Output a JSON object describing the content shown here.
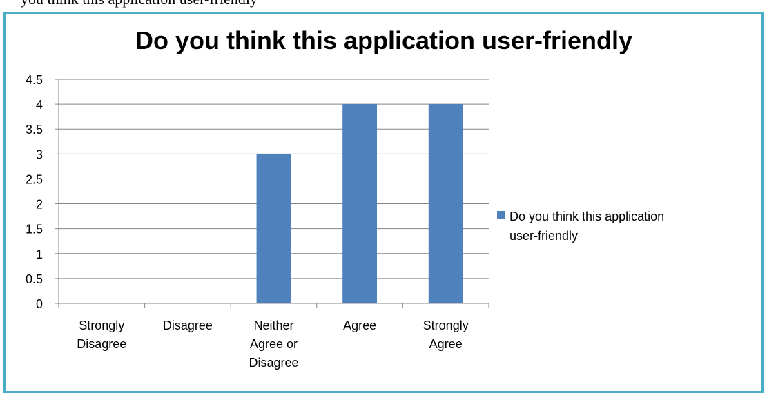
{
  "page_text": "you think this application user-friendly",
  "chart_data": {
    "type": "bar",
    "title": "Do you think this application user-friendly",
    "categories": [
      [
        "Strongly",
        "Disagree"
      ],
      [
        "Disagree"
      ],
      [
        "Neither",
        "Agree or",
        "Disagree"
      ],
      [
        "Agree"
      ],
      [
        "Strongly",
        "Agree"
      ]
    ],
    "series": [
      {
        "name": "Do you think this application user-friendly",
        "values": [
          0,
          0,
          3,
          4,
          4
        ],
        "color": "#4F81BD"
      }
    ],
    "legend_lines": [
      "Do you think this application",
      "user-friendly"
    ],
    "legend_position": "right",
    "ylim": [
      0,
      4.5
    ],
    "yticks": [
      "0",
      "0.5",
      "1",
      "1.5",
      "2",
      "2.5",
      "3",
      "3.5",
      "4",
      "4.5"
    ],
    "grid": true,
    "frame_color": "#4BACC6"
  }
}
